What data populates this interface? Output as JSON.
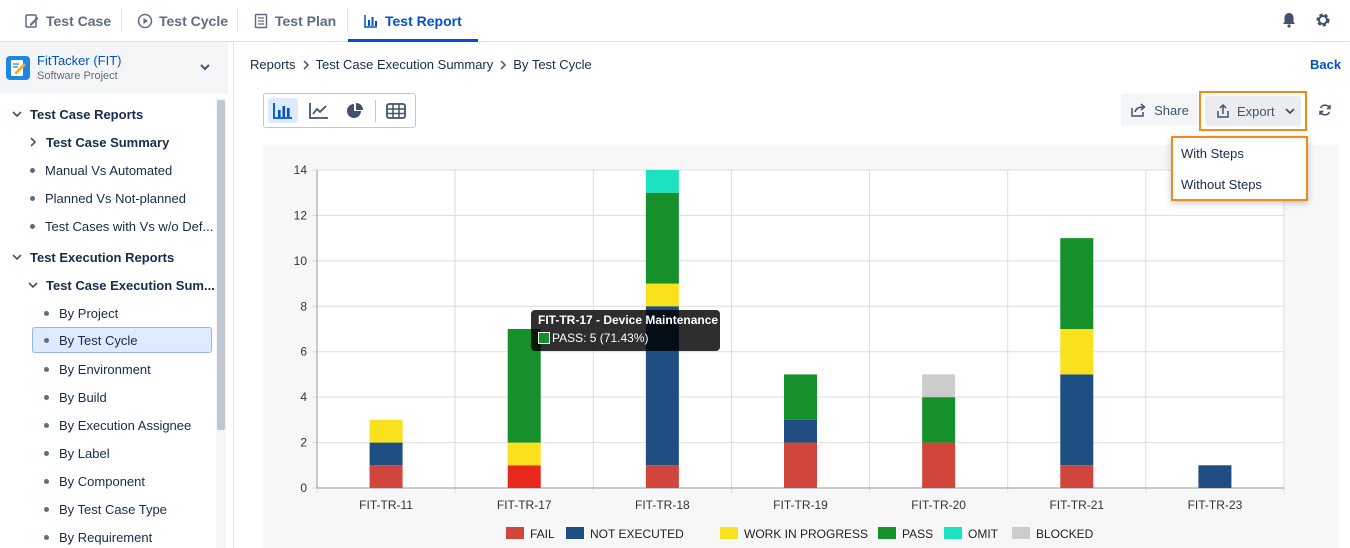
{
  "tabs": [
    {
      "label": "Test Case",
      "icon": "edit-icon"
    },
    {
      "label": "Test Cycle",
      "icon": "play-circle-icon"
    },
    {
      "label": "Test Plan",
      "icon": "document-list-icon"
    },
    {
      "label": "Test Report",
      "icon": "bar-chart-icon",
      "active": true
    }
  ],
  "project": {
    "name": "FitTacker (FIT)",
    "type": "Software Project"
  },
  "sidebar": {
    "items": [
      {
        "label": "Test Case Reports",
        "kind": "section",
        "expanded": true
      },
      {
        "label": "Test Case Summary",
        "kind": "group",
        "expanded": false
      },
      {
        "label": "Manual Vs Automated",
        "kind": "leaf"
      },
      {
        "label": "Planned Vs Not-planned",
        "kind": "leaf"
      },
      {
        "label": "Test Cases with Vs w/o Def...",
        "kind": "leaf"
      },
      {
        "label": "Test Execution Reports",
        "kind": "section",
        "expanded": true
      },
      {
        "label": "Test Case Execution Sum...",
        "kind": "group",
        "expanded": true
      },
      {
        "label": "By Project",
        "kind": "sub"
      },
      {
        "label": "By Test Cycle",
        "kind": "sub",
        "selected": true
      },
      {
        "label": "By Environment",
        "kind": "sub"
      },
      {
        "label": "By Build",
        "kind": "sub"
      },
      {
        "label": "By Execution Assignee",
        "kind": "sub"
      },
      {
        "label": "By Label",
        "kind": "sub"
      },
      {
        "label": "By Component",
        "kind": "sub"
      },
      {
        "label": "By Test Case Type",
        "kind": "sub"
      },
      {
        "label": "By Requirement",
        "kind": "sub"
      }
    ]
  },
  "breadcrumb": [
    "Reports",
    "Test Case Execution Summary",
    "By Test Cycle"
  ],
  "back_label": "Back",
  "toolbar": {
    "share_label": "Share",
    "export_label": "Export"
  },
  "export_menu": [
    "With Steps",
    "Without Steps"
  ],
  "tooltip": {
    "title": "FIT-TR-17 - Device Maintenance",
    "line": "PASS: 5 (71.43%)"
  },
  "colors": {
    "accent": "#0052cc",
    "highlight": "#f18b1b"
  },
  "chart_data": {
    "type": "bar",
    "stacked": true,
    "categories": [
      "FIT-TR-11",
      "FIT-TR-17",
      "FIT-TR-18",
      "FIT-TR-19",
      "FIT-TR-20",
      "FIT-TR-21",
      "FIT-TR-23"
    ],
    "series": [
      {
        "name": "FAIL",
        "color": "#d1463c",
        "values": [
          1,
          1,
          1,
          2,
          2,
          1,
          0
        ]
      },
      {
        "name": "NOT EXECUTED",
        "color": "#1f4e82",
        "values": [
          1,
          0,
          7,
          1,
          0,
          4,
          1
        ]
      },
      {
        "name": "WORK IN PROGRESS",
        "color": "#f9e11e",
        "values": [
          1,
          1,
          1,
          0,
          0,
          2,
          0
        ]
      },
      {
        "name": "PASS",
        "color": "#16902a",
        "values": [
          0,
          5,
          4,
          2,
          2,
          4,
          0
        ]
      },
      {
        "name": "OMIT",
        "color": "#1de2c2",
        "values": [
          0,
          0,
          1,
          0,
          0,
          0,
          0
        ]
      },
      {
        "name": "BLOCKED",
        "color": "#cccccc",
        "values": [
          0,
          0,
          0,
          0,
          1,
          0,
          0
        ]
      }
    ],
    "ylim": [
      0,
      14
    ],
    "yticks": [
      "0",
      "2",
      "4",
      "6",
      "8",
      "10",
      "12",
      "14"
    ],
    "grid": true,
    "legend": "bottom"
  }
}
